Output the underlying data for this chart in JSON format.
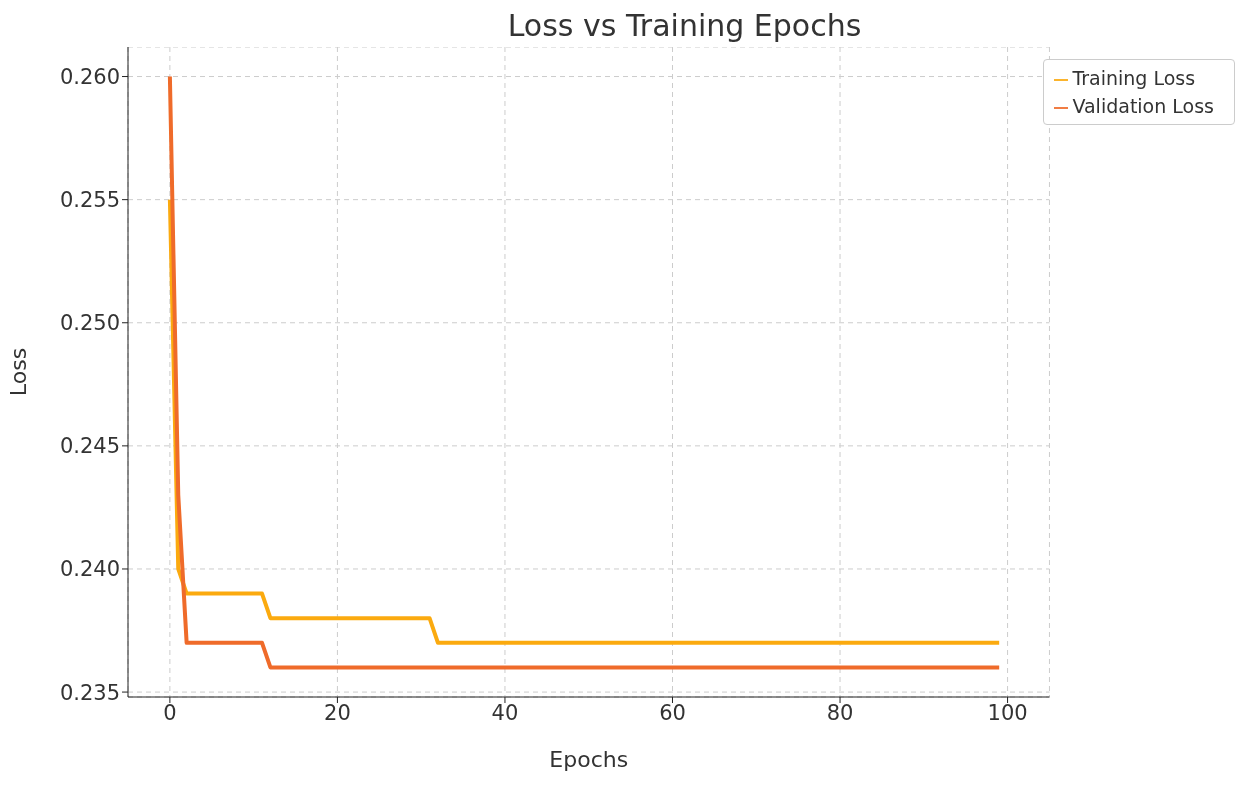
{
  "chart_data": {
    "type": "line",
    "title": "Loss vs Training Epochs",
    "xlabel": "Epochs",
    "ylabel": "Loss",
    "xlim": [
      -5,
      105
    ],
    "xticks": [
      0,
      20,
      40,
      60,
      80,
      100
    ],
    "ylim": [
      0.2348,
      0.2612
    ],
    "yticks": [
      {
        "value": 0.235,
        "label": "0.235"
      },
      {
        "value": 0.24,
        "label": "0.240"
      },
      {
        "value": 0.245,
        "label": "0.245"
      },
      {
        "value": 0.25,
        "label": "0.250"
      },
      {
        "value": 0.255,
        "label": "0.255"
      },
      {
        "value": 0.26,
        "label": "0.260"
      }
    ],
    "grid": true,
    "legend": "top right",
    "line_style": "solid",
    "marker": "none",
    "series": [
      {
        "name": "Training Loss",
        "color": "#fbaa0f",
        "x": [
          0,
          1,
          2,
          11,
          12,
          31,
          32,
          99
        ],
        "values": [
          0.255,
          0.24,
          0.239,
          0.239,
          0.238,
          0.238,
          0.237,
          0.237
        ]
      },
      {
        "name": "Validation Loss",
        "color": "#ef6b2a",
        "x": [
          0,
          1,
          2,
          11,
          12,
          99
        ],
        "values": [
          0.26,
          0.243,
          0.237,
          0.237,
          0.236,
          0.236
        ]
      }
    ]
  }
}
